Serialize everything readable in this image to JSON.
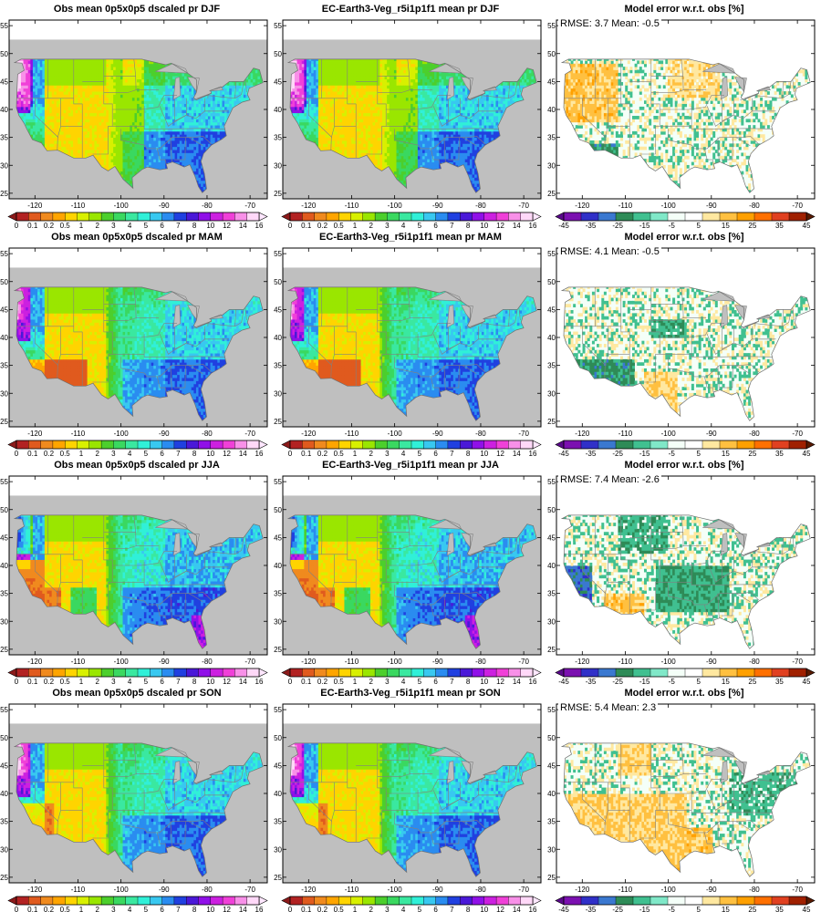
{
  "rows": [
    {
      "season": "DJF",
      "obs_title": "Obs mean 0p5x0p5 dscaled pr DJF",
      "model_title": "EC-Earth3-Veg_r5i1p1f1 mean pr DJF",
      "error_title": "Model error w.r.t. obs [%]",
      "stats": "RMSE: 3.7  Mean: -0.5"
    },
    {
      "season": "MAM",
      "obs_title": "Obs mean 0p5x0p5 dscaled pr MAM",
      "model_title": "EC-Earth3-Veg_r5i1p1f1 mean pr MAM",
      "error_title": "Model error w.r.t. obs [%]",
      "stats": "RMSE: 4.1  Mean: -0.5"
    },
    {
      "season": "JJA",
      "obs_title": "Obs mean 0p5x0p5 dscaled pr JJA",
      "model_title": "EC-Earth3-Veg_r5i1p1f1 mean pr JJA",
      "error_title": "Model error w.r.t. obs [%]",
      "stats": "RMSE: 7.4  Mean: -2.6"
    },
    {
      "season": "SON",
      "obs_title": "Obs mean 0p5x0p5 dscaled pr SON",
      "model_title": "EC-Earth3-Veg_r5i1p1f1 mean pr SON",
      "error_title": "Model error w.r.t. obs [%]",
      "stats": "RMSE: 5.4  Mean: 2.3"
    }
  ],
  "map_axes": {
    "lon_ticks": [
      "-120",
      "-110",
      "-100",
      "-90",
      "-80",
      "-70"
    ],
    "lat_ticks": [
      "25",
      "30",
      "35",
      "40",
      "45",
      "50",
      "55"
    ]
  },
  "pr_colorbar": {
    "labels": [
      "0",
      "0.1",
      "0.2",
      "0.5",
      "1",
      "2",
      "3",
      "4",
      "5",
      "6",
      "7",
      "8",
      "10",
      "12",
      "14",
      "16"
    ],
    "colors": [
      "#b22222",
      "#e05a1e",
      "#f08a1e",
      "#ffa500",
      "#ffd400",
      "#d8f000",
      "#9ae600",
      "#4ccf2c",
      "#3ad860",
      "#3ae8a0",
      "#30f0d8",
      "#38c8f0",
      "#2a8cf0",
      "#2040e0",
      "#4a18d8",
      "#9010e8",
      "#cc20e0",
      "#f040d8",
      "#f890e8",
      "#ffd8f8"
    ],
    "min_arrow": "#8b1a1a",
    "max_arrow": "#ffe8ff"
  },
  "err_colorbar": {
    "labels": [
      "-45",
      "-35",
      "-25",
      "-15",
      "-5",
      "5",
      "15",
      "25",
      "35",
      "45"
    ],
    "colors": [
      "#7b10b0",
      "#3030c8",
      "#3a78d0",
      "#2e8b57",
      "#40c090",
      "#80e8c8",
      "#f4fff8",
      "#ffffff",
      "#ffe8a0",
      "#ffc040",
      "#ffa000",
      "#ff7000",
      "#e04020",
      "#a02000"
    ],
    "min_arrow": "#5a0a8a",
    "max_arrow": "#5a1a00"
  },
  "colors": {
    "land_mask": "#bfbfbf",
    "ocean_gray": "#bfbfbf",
    "border": "#808080"
  }
}
